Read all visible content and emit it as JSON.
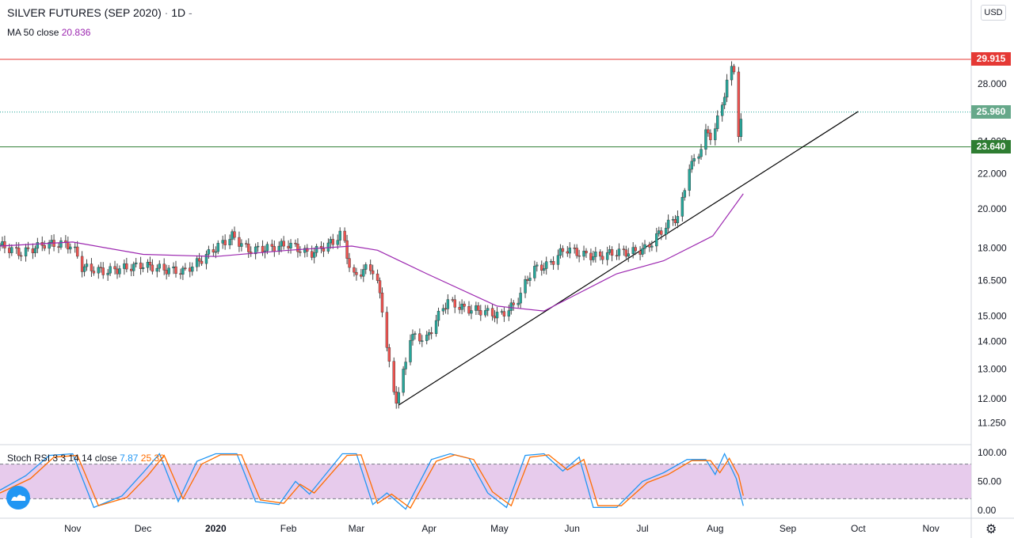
{
  "header": {
    "symbol": "SILVER FUTURES (SEP 2020)",
    "sep": "·",
    "interval": "1D",
    "dash": "-",
    "currency_button": "USD"
  },
  "ma_legend": {
    "label": "MA 50 close",
    "value": "20.836"
  },
  "stoch_legend": {
    "label": "Stoch RSI 3 3 14 14 close",
    "k": "7.87",
    "d": "25.32"
  },
  "colors": {
    "up": "#26a69a",
    "down": "#ef5350",
    "ma": "#9c27b0",
    "stoch_k": "#2196f3",
    "stoch_d": "#ff6d00",
    "stoch_band": "#e1bee7",
    "resistance": "#e53935",
    "support": "#2e7d32",
    "trend": "#000000"
  },
  "price_tags": {
    "resistance": "29.915",
    "last": "25.960",
    "support": "23.640"
  },
  "chart_data": [
    {
      "type": "candlestick",
      "title": "SILVER FUTURES (SEP 2020) · 1D",
      "y_scale": "log",
      "y_ticks": [
        "28.000",
        "24.000",
        "22.000",
        "20.000",
        "18.000",
        "16.500",
        "15.000",
        "14.000",
        "13.000",
        "12.000",
        "11.250"
      ],
      "x_ticks": [
        "Nov",
        "Dec",
        "2020",
        "Feb",
        "Mar",
        "Apr",
        "May",
        "Jun",
        "Jul",
        "Aug",
        "Sep",
        "Oct",
        "Nov"
      ],
      "horizontal_lines": [
        29.915,
        23.64
      ],
      "last_price": 25.96,
      "trendline": [
        [
          "2020-03-19",
          11.8
        ],
        [
          "2020-10-01",
          26.0
        ]
      ],
      "close_path": [
        [
          "2019-10-01",
          18.15
        ],
        [
          "2019-10-10",
          17.75
        ],
        [
          "2019-10-20",
          18.2
        ],
        [
          "2019-10-28",
          18.2
        ],
        [
          "2019-11-01",
          18.1
        ],
        [
          "2019-11-05",
          17.1
        ],
        [
          "2019-11-15",
          16.9
        ],
        [
          "2019-11-25",
          17.1
        ],
        [
          "2019-12-01",
          17.2
        ],
        [
          "2019-12-10",
          17.0
        ],
        [
          "2019-12-18",
          16.9
        ],
        [
          "2019-12-24",
          17.3
        ],
        [
          "2020-01-01",
          18.0
        ],
        [
          "2020-01-08",
          18.6
        ],
        [
          "2020-01-15",
          17.9
        ],
        [
          "2020-01-24",
          18.0
        ],
        [
          "2020-02-01",
          18.2
        ],
        [
          "2020-02-10",
          17.7
        ],
        [
          "2020-02-20",
          18.3
        ],
        [
          "2020-02-24",
          18.8
        ],
        [
          "2020-02-28",
          16.6
        ],
        [
          "2020-03-06",
          17.1
        ],
        [
          "2020-03-09",
          16.9
        ],
        [
          "2020-03-12",
          15.3
        ],
        [
          "2020-03-16",
          12.4
        ],
        [
          "2020-03-18",
          12.0
        ],
        [
          "2020-03-20",
          12.4
        ],
        [
          "2020-03-24",
          14.2
        ],
        [
          "2020-03-31",
          14.1
        ],
        [
          "2020-04-06",
          15.2
        ],
        [
          "2020-04-09",
          15.6
        ],
        [
          "2020-04-16",
          15.3
        ],
        [
          "2020-04-24",
          15.2
        ],
        [
          "2020-05-01",
          15.0
        ],
        [
          "2020-05-08",
          15.5
        ],
        [
          "2020-05-15",
          17.0
        ],
        [
          "2020-05-22",
          17.2
        ],
        [
          "2020-05-29",
          18.0
        ],
        [
          "2020-06-05",
          17.7
        ],
        [
          "2020-06-12",
          17.6
        ],
        [
          "2020-06-19",
          17.8
        ],
        [
          "2020-06-26",
          17.8
        ],
        [
          "2020-07-03",
          18.0
        ],
        [
          "2020-07-10",
          19.0
        ],
        [
          "2020-07-17",
          19.7
        ],
        [
          "2020-07-21",
          22.5
        ],
        [
          "2020-07-24",
          22.8
        ],
        [
          "2020-07-28",
          24.5
        ],
        [
          "2020-07-31",
          24.3
        ],
        [
          "2020-08-04",
          26.5
        ],
        [
          "2020-08-07",
          29.0
        ],
        [
          "2020-08-10",
          29.2
        ],
        [
          "2020-08-11",
          24.5
        ],
        [
          "2020-08-13",
          25.96
        ]
      ],
      "ma50_path": [
        [
          "2019-10-01",
          18.1
        ],
        [
          "2019-11-01",
          18.3
        ],
        [
          "2019-12-01",
          17.7
        ],
        [
          "2020-01-01",
          17.6
        ],
        [
          "2020-02-01",
          17.9
        ],
        [
          "2020-02-28",
          18.1
        ],
        [
          "2020-03-10",
          17.9
        ],
        [
          "2020-03-31",
          16.8
        ],
        [
          "2020-04-30",
          15.4
        ],
        [
          "2020-05-20",
          15.2
        ],
        [
          "2020-06-01",
          15.8
        ],
        [
          "2020-06-20",
          16.8
        ],
        [
          "2020-07-10",
          17.4
        ],
        [
          "2020-07-31",
          18.6
        ],
        [
          "2020-08-13",
          20.836
        ]
      ]
    },
    {
      "type": "line",
      "title": "Stoch RSI 3 3 14 14 close",
      "y_ticks": [
        "100.00",
        "50.00",
        "0.00"
      ],
      "bands": [
        80,
        20
      ],
      "series": [
        {
          "name": "K",
          "last": 7.87,
          "path": [
            [
              "2019-10-01",
              35
            ],
            [
              "2019-10-12",
              60
            ],
            [
              "2019-10-22",
              95
            ],
            [
              "2019-11-01",
              98
            ],
            [
              "2019-11-10",
              5
            ],
            [
              "2019-11-22",
              25
            ],
            [
              "2019-12-01",
              65
            ],
            [
              "2019-12-08",
              98
            ],
            [
              "2019-12-16",
              15
            ],
            [
              "2019-12-24",
              85
            ],
            [
              "2020-01-01",
              98
            ],
            [
              "2020-01-10",
              98
            ],
            [
              "2020-01-18",
              15
            ],
            [
              "2020-01-28",
              10
            ],
            [
              "2020-02-04",
              50
            ],
            [
              "2020-02-10",
              28
            ],
            [
              "2020-02-24",
              98
            ],
            [
              "2020-03-01",
              98
            ],
            [
              "2020-03-08",
              10
            ],
            [
              "2020-03-14",
              30
            ],
            [
              "2020-03-22",
              2
            ],
            [
              "2020-04-02",
              88
            ],
            [
              "2020-04-10",
              98
            ],
            [
              "2020-04-18",
              90
            ],
            [
              "2020-04-26",
              30
            ],
            [
              "2020-05-04",
              5
            ],
            [
              "2020-05-12",
              95
            ],
            [
              "2020-05-20",
              98
            ],
            [
              "2020-05-28",
              68
            ],
            [
              "2020-06-04",
              92
            ],
            [
              "2020-06-10",
              5
            ],
            [
              "2020-06-20",
              5
            ],
            [
              "2020-07-01",
              50
            ],
            [
              "2020-07-10",
              65
            ],
            [
              "2020-07-20",
              88
            ],
            [
              "2020-07-28",
              88
            ],
            [
              "2020-08-01",
              62
            ],
            [
              "2020-08-05",
              98
            ],
            [
              "2020-08-10",
              55
            ],
            [
              "2020-08-13",
              7.87
            ]
          ]
        },
        {
          "name": "D",
          "last": 25.32,
          "path": [
            [
              "2019-10-01",
              30
            ],
            [
              "2019-10-14",
              55
            ],
            [
              "2019-10-24",
              92
            ],
            [
              "2019-11-03",
              95
            ],
            [
              "2019-11-12",
              8
            ],
            [
              "2019-11-24",
              22
            ],
            [
              "2019-12-03",
              60
            ],
            [
              "2019-12-10",
              95
            ],
            [
              "2019-12-18",
              20
            ],
            [
              "2019-12-26",
              80
            ],
            [
              "2020-01-03",
              96
            ],
            [
              "2020-01-12",
              96
            ],
            [
              "2020-01-20",
              18
            ],
            [
              "2020-01-30",
              12
            ],
            [
              "2020-02-06",
              45
            ],
            [
              "2020-02-12",
              30
            ],
            [
              "2020-02-26",
              95
            ],
            [
              "2020-03-03",
              96
            ],
            [
              "2020-03-10",
              12
            ],
            [
              "2020-03-16",
              28
            ],
            [
              "2020-03-24",
              4
            ],
            [
              "2020-04-04",
              85
            ],
            [
              "2020-04-12",
              96
            ],
            [
              "2020-04-20",
              88
            ],
            [
              "2020-04-28",
              32
            ],
            [
              "2020-05-06",
              8
            ],
            [
              "2020-05-14",
              92
            ],
            [
              "2020-05-22",
              96
            ],
            [
              "2020-05-30",
              70
            ],
            [
              "2020-06-06",
              88
            ],
            [
              "2020-06-12",
              8
            ],
            [
              "2020-06-22",
              8
            ],
            [
              "2020-07-03",
              48
            ],
            [
              "2020-07-12",
              62
            ],
            [
              "2020-07-22",
              86
            ],
            [
              "2020-07-30",
              86
            ],
            [
              "2020-08-03",
              65
            ],
            [
              "2020-08-07",
              90
            ],
            [
              "2020-08-11",
              60
            ],
            [
              "2020-08-13",
              25.32
            ]
          ]
        }
      ]
    }
  ]
}
